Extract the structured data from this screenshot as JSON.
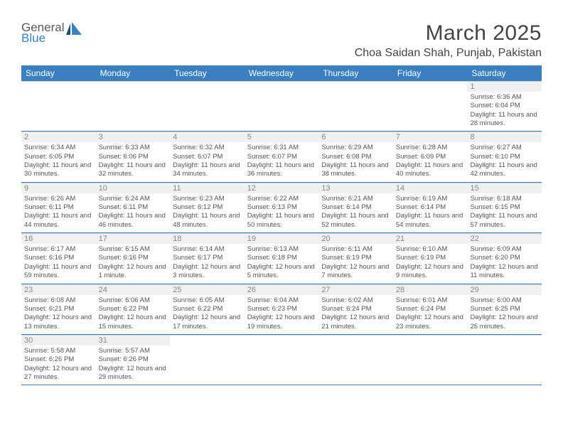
{
  "logo": {
    "general": "General",
    "blue": "Blue"
  },
  "title": "March 2025",
  "location": "Choa Saidan Shah, Punjab, Pakistan",
  "colors": {
    "header_bg": "#3a7fbf",
    "header_text": "#ffffff",
    "daynum_bg": "#f0f0f0",
    "daynum_text": "#888888",
    "body_text": "#555555",
    "row_divider": "#3a7fbf",
    "cell_divider": "#d0d0d0"
  },
  "day_headers": [
    "Sunday",
    "Monday",
    "Tuesday",
    "Wednesday",
    "Thursday",
    "Friday",
    "Saturday"
  ],
  "weeks": [
    [
      null,
      null,
      null,
      null,
      null,
      null,
      {
        "n": "1",
        "sunrise": "Sunrise: 6:36 AM",
        "sunset": "Sunset: 6:04 PM",
        "daylight": "Daylight: 11 hours and 28 minutes."
      }
    ],
    [
      {
        "n": "2",
        "sunrise": "Sunrise: 6:34 AM",
        "sunset": "Sunset: 6:05 PM",
        "daylight": "Daylight: 11 hours and 30 minutes."
      },
      {
        "n": "3",
        "sunrise": "Sunrise: 6:33 AM",
        "sunset": "Sunset: 6:06 PM",
        "daylight": "Daylight: 11 hours and 32 minutes."
      },
      {
        "n": "4",
        "sunrise": "Sunrise: 6:32 AM",
        "sunset": "Sunset: 6:07 PM",
        "daylight": "Daylight: 11 hours and 34 minutes."
      },
      {
        "n": "5",
        "sunrise": "Sunrise: 6:31 AM",
        "sunset": "Sunset: 6:07 PM",
        "daylight": "Daylight: 11 hours and 36 minutes."
      },
      {
        "n": "6",
        "sunrise": "Sunrise: 6:29 AM",
        "sunset": "Sunset: 6:08 PM",
        "daylight": "Daylight: 11 hours and 38 minutes."
      },
      {
        "n": "7",
        "sunrise": "Sunrise: 6:28 AM",
        "sunset": "Sunset: 6:09 PM",
        "daylight": "Daylight: 11 hours and 40 minutes."
      },
      {
        "n": "8",
        "sunrise": "Sunrise: 6:27 AM",
        "sunset": "Sunset: 6:10 PM",
        "daylight": "Daylight: 11 hours and 42 minutes."
      }
    ],
    [
      {
        "n": "9",
        "sunrise": "Sunrise: 6:26 AM",
        "sunset": "Sunset: 6:11 PM",
        "daylight": "Daylight: 11 hours and 44 minutes."
      },
      {
        "n": "10",
        "sunrise": "Sunrise: 6:24 AM",
        "sunset": "Sunset: 6:11 PM",
        "daylight": "Daylight: 11 hours and 46 minutes."
      },
      {
        "n": "11",
        "sunrise": "Sunrise: 6:23 AM",
        "sunset": "Sunset: 6:12 PM",
        "daylight": "Daylight: 11 hours and 48 minutes."
      },
      {
        "n": "12",
        "sunrise": "Sunrise: 6:22 AM",
        "sunset": "Sunset: 6:13 PM",
        "daylight": "Daylight: 11 hours and 50 minutes."
      },
      {
        "n": "13",
        "sunrise": "Sunrise: 6:21 AM",
        "sunset": "Sunset: 6:14 PM",
        "daylight": "Daylight: 11 hours and 52 minutes."
      },
      {
        "n": "14",
        "sunrise": "Sunrise: 6:19 AM",
        "sunset": "Sunset: 6:14 PM",
        "daylight": "Daylight: 11 hours and 54 minutes."
      },
      {
        "n": "15",
        "sunrise": "Sunrise: 6:18 AM",
        "sunset": "Sunset: 6:15 PM",
        "daylight": "Daylight: 11 hours and 57 minutes."
      }
    ],
    [
      {
        "n": "16",
        "sunrise": "Sunrise: 6:17 AM",
        "sunset": "Sunset: 6:16 PM",
        "daylight": "Daylight: 11 hours and 59 minutes."
      },
      {
        "n": "17",
        "sunrise": "Sunrise: 6:15 AM",
        "sunset": "Sunset: 6:16 PM",
        "daylight": "Daylight: 12 hours and 1 minute."
      },
      {
        "n": "18",
        "sunrise": "Sunrise: 6:14 AM",
        "sunset": "Sunset: 6:17 PM",
        "daylight": "Daylight: 12 hours and 3 minutes."
      },
      {
        "n": "19",
        "sunrise": "Sunrise: 6:13 AM",
        "sunset": "Sunset: 6:18 PM",
        "daylight": "Daylight: 12 hours and 5 minutes."
      },
      {
        "n": "20",
        "sunrise": "Sunrise: 6:11 AM",
        "sunset": "Sunset: 6:19 PM",
        "daylight": "Daylight: 12 hours and 7 minutes."
      },
      {
        "n": "21",
        "sunrise": "Sunrise: 6:10 AM",
        "sunset": "Sunset: 6:19 PM",
        "daylight": "Daylight: 12 hours and 9 minutes."
      },
      {
        "n": "22",
        "sunrise": "Sunrise: 6:09 AM",
        "sunset": "Sunset: 6:20 PM",
        "daylight": "Daylight: 12 hours and 11 minutes."
      }
    ],
    [
      {
        "n": "23",
        "sunrise": "Sunrise: 6:08 AM",
        "sunset": "Sunset: 6:21 PM",
        "daylight": "Daylight: 12 hours and 13 minutes."
      },
      {
        "n": "24",
        "sunrise": "Sunrise: 6:06 AM",
        "sunset": "Sunset: 6:22 PM",
        "daylight": "Daylight: 12 hours and 15 minutes."
      },
      {
        "n": "25",
        "sunrise": "Sunrise: 6:05 AM",
        "sunset": "Sunset: 6:22 PM",
        "daylight": "Daylight: 12 hours and 17 minutes."
      },
      {
        "n": "26",
        "sunrise": "Sunrise: 6:04 AM",
        "sunset": "Sunset: 6:23 PM",
        "daylight": "Daylight: 12 hours and 19 minutes."
      },
      {
        "n": "27",
        "sunrise": "Sunrise: 6:02 AM",
        "sunset": "Sunset: 6:24 PM",
        "daylight": "Daylight: 12 hours and 21 minutes."
      },
      {
        "n": "28",
        "sunrise": "Sunrise: 6:01 AM",
        "sunset": "Sunset: 6:24 PM",
        "daylight": "Daylight: 12 hours and 23 minutes."
      },
      {
        "n": "29",
        "sunrise": "Sunrise: 6:00 AM",
        "sunset": "Sunset: 6:25 PM",
        "daylight": "Daylight: 12 hours and 25 minutes."
      }
    ],
    [
      {
        "n": "30",
        "sunrise": "Sunrise: 5:58 AM",
        "sunset": "Sunset: 6:26 PM",
        "daylight": "Daylight: 12 hours and 27 minutes."
      },
      {
        "n": "31",
        "sunrise": "Sunrise: 5:57 AM",
        "sunset": "Sunset: 6:26 PM",
        "daylight": "Daylight: 12 hours and 29 minutes."
      },
      null,
      null,
      null,
      null,
      null
    ]
  ]
}
